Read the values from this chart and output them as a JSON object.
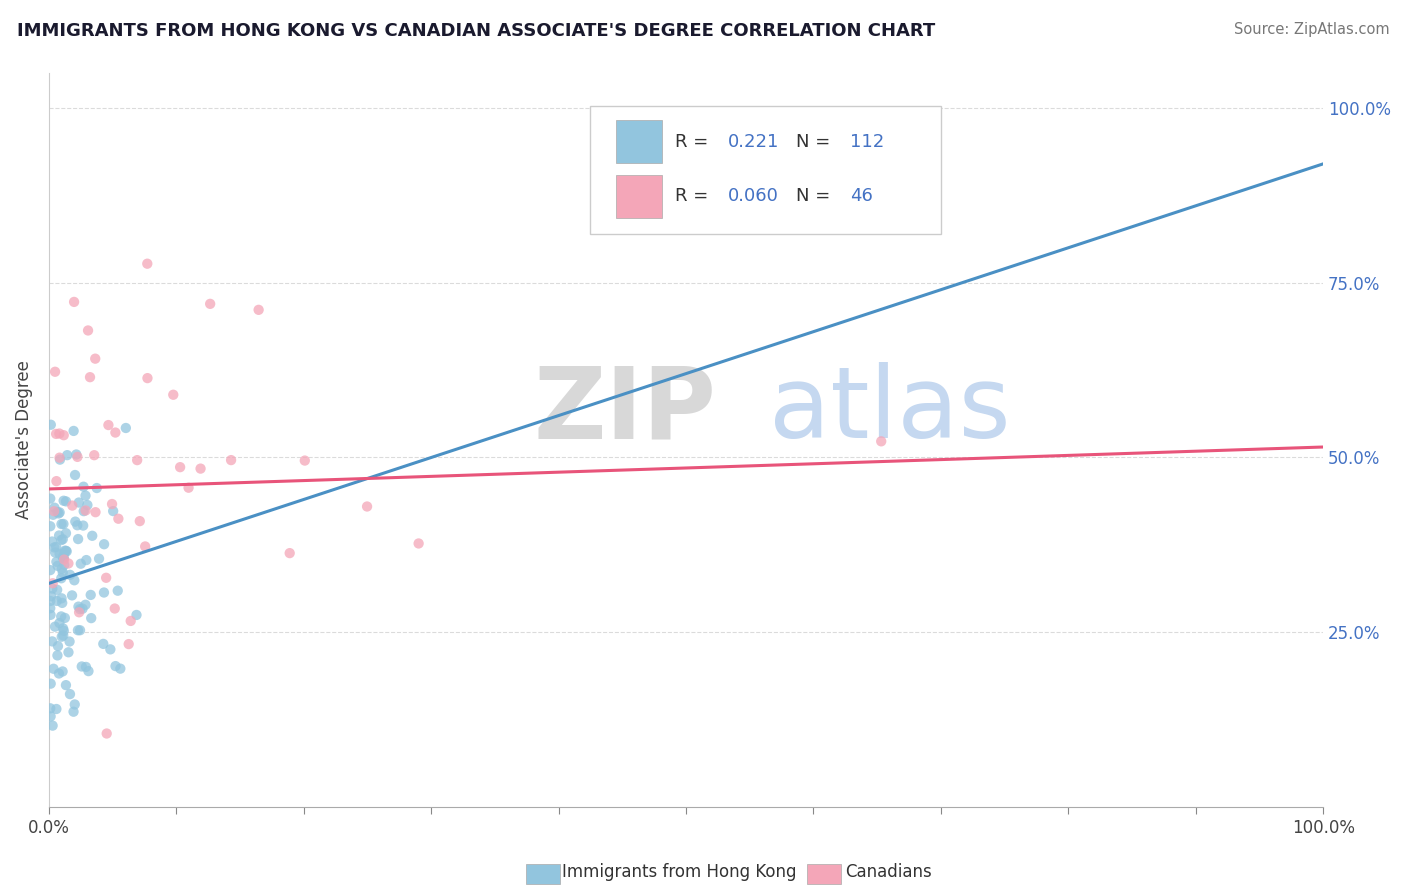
{
  "title": "IMMIGRANTS FROM HONG KONG VS CANADIAN ASSOCIATE'S DEGREE CORRELATION CHART",
  "source": "Source: ZipAtlas.com",
  "ylabel": "Associate's Degree",
  "r1": 0.221,
  "n1": 112,
  "r2": 0.06,
  "n2": 46,
  "color_blue": "#92c5de",
  "color_pink": "#f4a6b8",
  "line_blue": "#4a90c4",
  "line_pink": "#e8547a",
  "watermark_zip": "ZIP",
  "watermark_atlas": "atlas",
  "xlim": [
    0.0,
    1.0
  ],
  "ylim": [
    0.0,
    1.05
  ],
  "ytick_vals": [
    0.25,
    0.5,
    0.75,
    1.0
  ],
  "ytick_labels": [
    "25.0%",
    "50.0%",
    "75.0%",
    "100.0%"
  ],
  "xtick_vals": [
    0.0,
    0.1,
    0.2,
    0.3,
    0.4,
    0.5,
    0.6,
    0.7,
    0.8,
    0.9,
    1.0
  ],
  "legend_label1": "Immigrants from Hong Kong",
  "legend_label2": "Canadians",
  "blue_line_x": [
    0.0,
    1.0
  ],
  "blue_line_y": [
    0.32,
    0.92
  ],
  "pink_line_x": [
    0.0,
    1.0
  ],
  "pink_line_y": [
    0.455,
    0.515
  ]
}
